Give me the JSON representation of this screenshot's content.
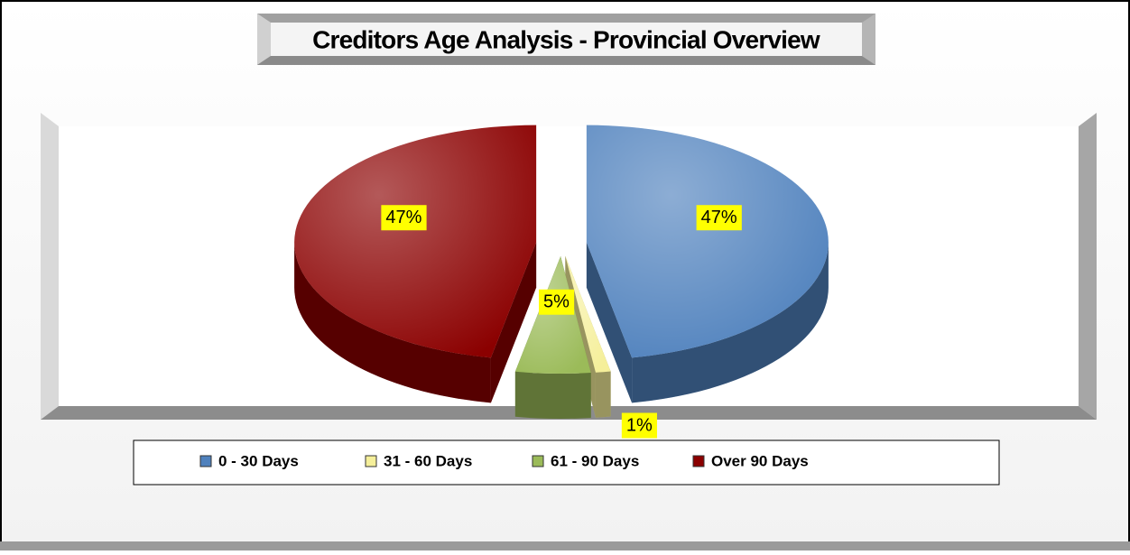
{
  "chart_data": {
    "type": "pie",
    "title": "Creditors Age Analysis - Provincial Overview",
    "categories": [
      "0 - 30 Days",
      "31 - 60 Days",
      "61 - 90 Days",
      "Over 90 Days"
    ],
    "values": [
      47,
      1,
      5,
      47
    ],
    "value_labels": [
      "47%",
      "1%",
      "5%",
      "47%"
    ],
    "colors": [
      "#4f81bd",
      "#f5ef9a",
      "#9bbb59",
      "#8b0000"
    ],
    "legend": "bottom"
  }
}
